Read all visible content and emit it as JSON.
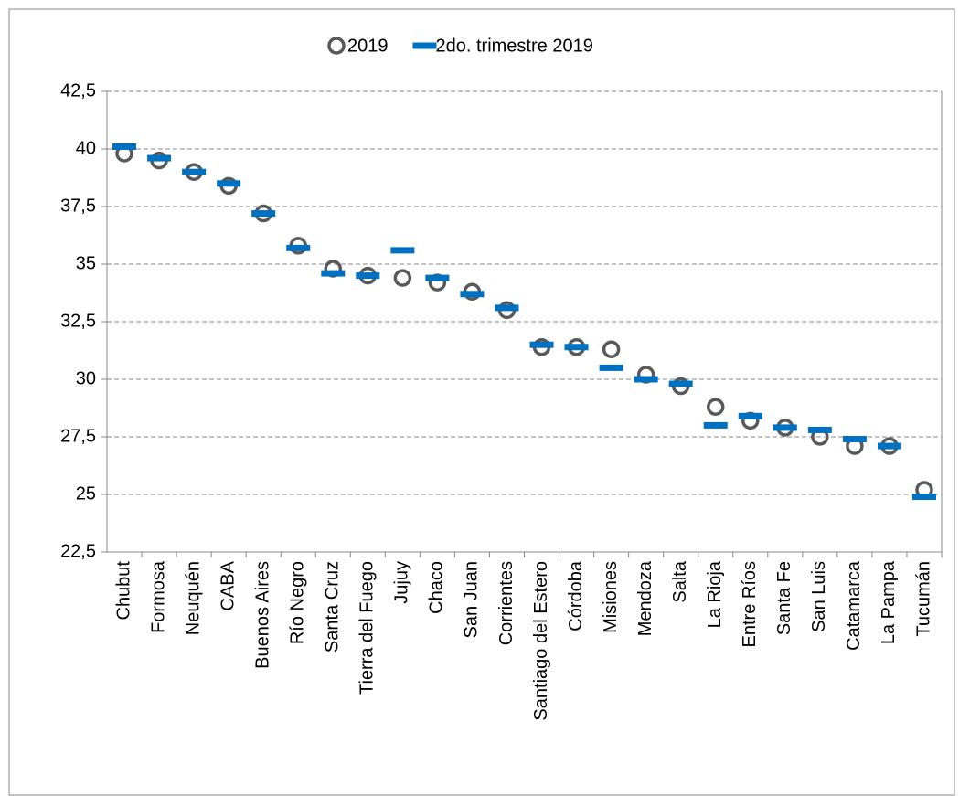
{
  "chart_data": {
    "type": "dot",
    "categories": [
      "Chubut",
      "Formosa",
      "Neuquén",
      "CABA",
      "Buenos Aires",
      "Río Negro",
      "Santa Cruz",
      "Tierra del Fuego",
      "Jujuy",
      "Chaco",
      "San Juan",
      "Corrientes",
      "Santiago del Estero",
      "Córdoba",
      "Misiones",
      "Mendoza",
      "Salta",
      "La Rioja",
      "Entre Ríos",
      "Santa Fe",
      "San Luis",
      "Catamarca",
      "La Pampa",
      "Tucumán"
    ],
    "series": [
      {
        "name": "2019",
        "color": "#595959",
        "marker": "circle",
        "values": [
          39.8,
          39.5,
          39.0,
          38.4,
          37.2,
          35.8,
          34.8,
          34.5,
          34.4,
          34.2,
          33.8,
          33.0,
          31.4,
          31.4,
          31.3,
          30.2,
          29.7,
          28.8,
          28.2,
          27.9,
          27.5,
          27.1,
          27.1,
          25.2
        ]
      },
      {
        "name": "2do. trimestre 2019",
        "color": "#0070c0",
        "marker": "dash",
        "values": [
          40.1,
          39.6,
          39.0,
          38.5,
          37.2,
          35.7,
          34.6,
          34.5,
          35.6,
          34.4,
          33.7,
          33.1,
          31.5,
          31.4,
          30.5,
          30.0,
          29.8,
          28.0,
          28.4,
          27.9,
          27.8,
          27.4,
          27.1,
          24.9
        ]
      }
    ],
    "ylim": [
      22.5,
      42.5
    ],
    "yticks": [
      {
        "value": 22.5,
        "label": "22,5"
      },
      25,
      {
        "value": 27.5,
        "label": "27,5"
      },
      30,
      {
        "value": 32.5,
        "label": "32,5"
      },
      35,
      {
        "value": 37.5,
        "label": "37,5"
      },
      40,
      {
        "value": 42.5,
        "label": "42,5"
      }
    ],
    "grid": true,
    "legend": "top"
  }
}
